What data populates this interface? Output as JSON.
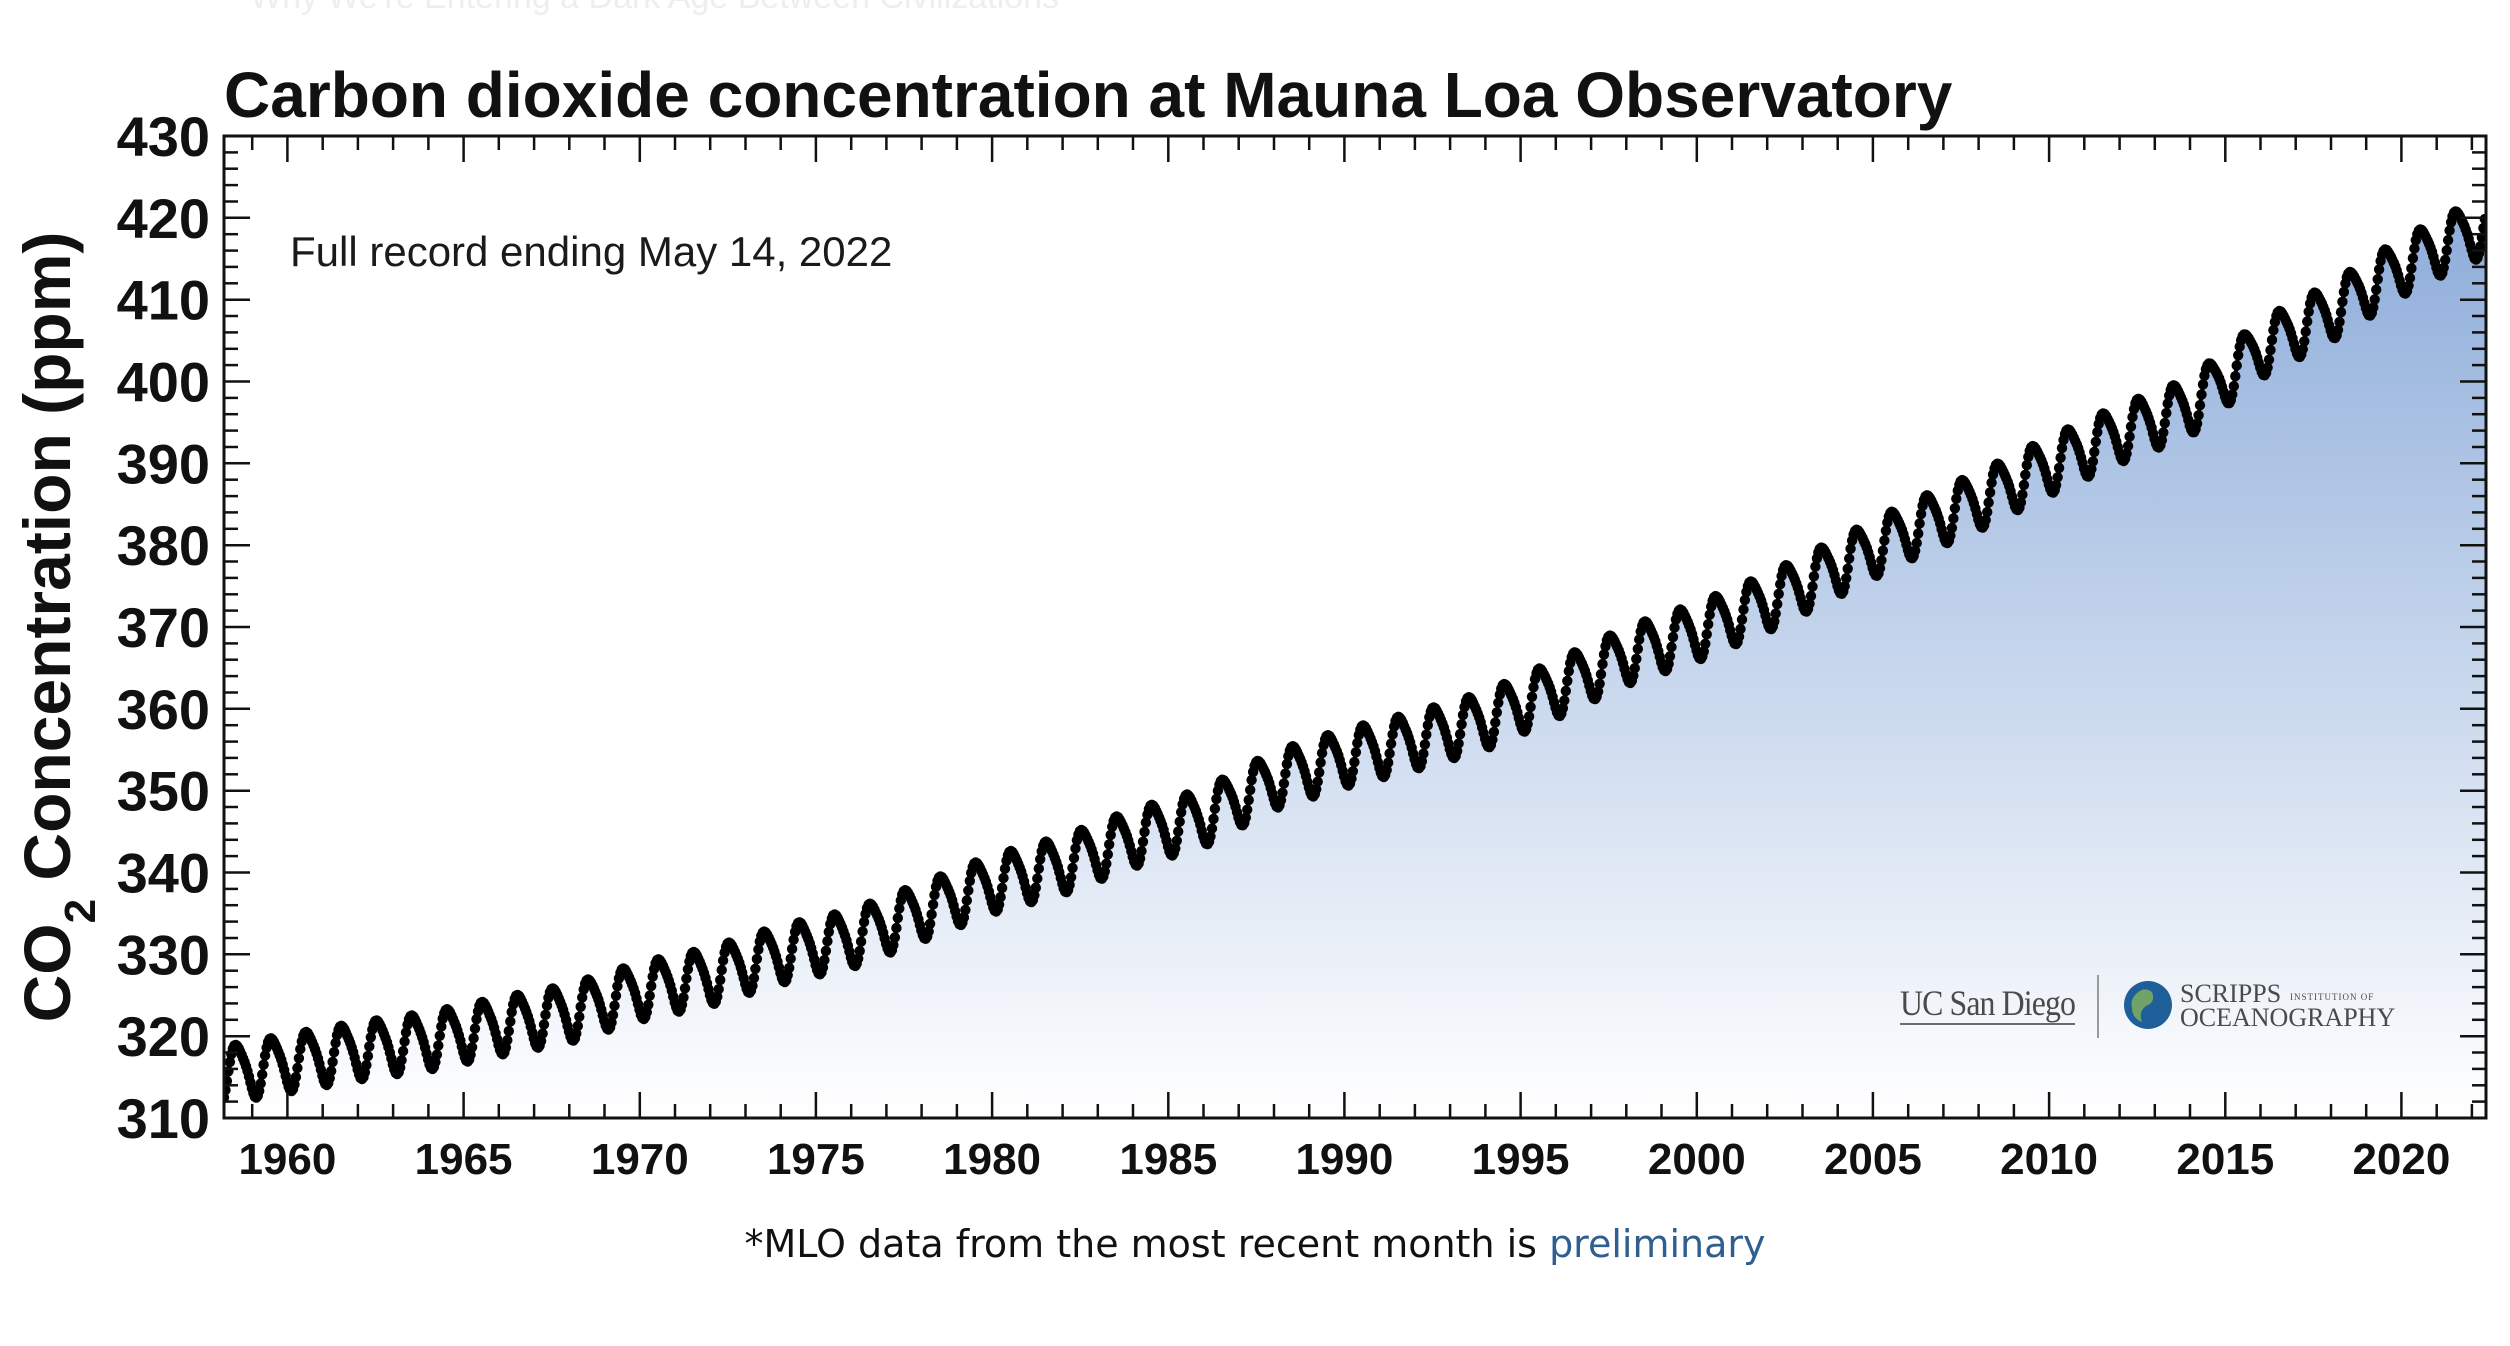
{
  "background_text": {
    "top_left": "Why We're Entering a Dark Age Between Civilizations",
    "top_right": "",
    "bottom": ""
  },
  "caption": {
    "text": "*MLO data from the most recent month is ",
    "link": "preliminary",
    "link_color": "#2f5f8f"
  },
  "logos": {
    "ucsd": "UC San Diego",
    "scripps_line1": "SCRIPPS",
    "scripps_small": "INSTITUTION OF",
    "scripps_line2": "OCEANOGRAPHY",
    "globe_colors": [
      "#1f5f99",
      "#6fa36a"
    ]
  },
  "chart_data": {
    "type": "line",
    "title": "Carbon dioxide concentration at Mauna Loa Observatory",
    "annotation": "Full record ending May 14, 2022",
    "ylabel": "CO2 Concentration (ppm)",
    "ylabel_main": "CO",
    "ylabel_sub": "2",
    "ylabel_rest": " Concentration (ppm)",
    "xlabel": "",
    "xlim": [
      1958.2,
      2022.4
    ],
    "ylim": [
      310,
      430
    ],
    "xticks": [
      1960,
      1965,
      1970,
      1975,
      1980,
      1985,
      1990,
      1995,
      2000,
      2005,
      2010,
      2015,
      2020
    ],
    "yticks": [
      310,
      320,
      330,
      340,
      350,
      360,
      370,
      380,
      390,
      400,
      410,
      420,
      430
    ],
    "grid": false,
    "line_color": "#000000",
    "fill_gradient": [
      "#ffffff",
      "#8eadda"
    ],
    "series": [
      {
        "marker": "dot",
        "x": [
          1958,
          1960,
          1962,
          1964,
          1966,
          1968,
          1970,
          1972,
          1974,
          1976,
          1978,
          1980,
          1982,
          1984,
          1986,
          1988,
          1990,
          1992,
          1994,
          1996,
          1998,
          2000,
          2002,
          2004,
          2006,
          2008,
          2010,
          2012,
          2014,
          2016,
          2018,
          2020,
          2022
        ],
        "y": [
          315.3,
          316.9,
          318.4,
          319.6,
          321.4,
          323.0,
          325.7,
          327.5,
          330.2,
          332.1,
          335.4,
          338.8,
          341.1,
          344.4,
          346.9,
          351.5,
          354.2,
          356.3,
          358.8,
          362.6,
          366.7,
          369.6,
          373.2,
          377.5,
          381.9,
          385.6,
          389.9,
          393.8,
          397.1,
          404.2,
          408.7,
          414.2,
          418.6
        ],
        "seasonal_amplitude": 3.3
      }
    ]
  }
}
